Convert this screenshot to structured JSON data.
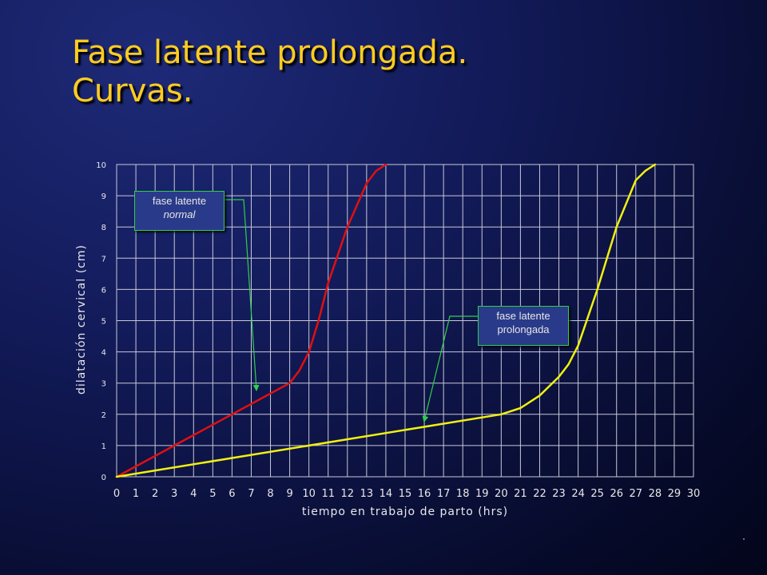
{
  "slide": {
    "title_line1": "Fase latente prolongada.",
    "title_line2": "Curvas."
  },
  "callouts": {
    "normal": {
      "line1": "fase latente",
      "line2": "normal",
      "color": "#2fd04a"
    },
    "prolongada": {
      "line1": "fase latente",
      "line2": "prolongada",
      "color": "#2fd04a"
    }
  },
  "chart_data": {
    "type": "line",
    "title": "",
    "xlabel": "tiempo en trabajo de parto (hrs)",
    "ylabel": "dilatación cervical (cm)",
    "xlim": [
      0,
      30
    ],
    "ylim": [
      0,
      10
    ],
    "xticks": [
      0,
      1,
      2,
      3,
      4,
      5,
      6,
      7,
      8,
      9,
      10,
      11,
      12,
      13,
      14,
      15,
      16,
      17,
      18,
      19,
      20,
      21,
      22,
      23,
      24,
      25,
      26,
      27,
      28,
      29,
      30
    ],
    "yticks": [
      0,
      1,
      2,
      3,
      4,
      5,
      6,
      7,
      8,
      9,
      10
    ],
    "grid": true,
    "series": [
      {
        "color": "#e01010",
        "x": [
          0,
          9,
          9.5,
          10,
          10.5,
          11,
          12,
          13,
          13.5,
          14
        ],
        "y": [
          0,
          3.0,
          3.4,
          4.0,
          5.0,
          6.2,
          8.0,
          9.4,
          9.8,
          10
        ]
      },
      {
        "color": "#f0f010",
        "x": [
          0,
          20,
          21,
          22,
          23,
          23.5,
          24,
          25,
          26,
          27,
          27.5,
          28
        ],
        "y": [
          0,
          2.0,
          2.2,
          2.6,
          3.2,
          3.6,
          4.2,
          6.0,
          8.0,
          9.5,
          9.8,
          10
        ]
      }
    ]
  }
}
